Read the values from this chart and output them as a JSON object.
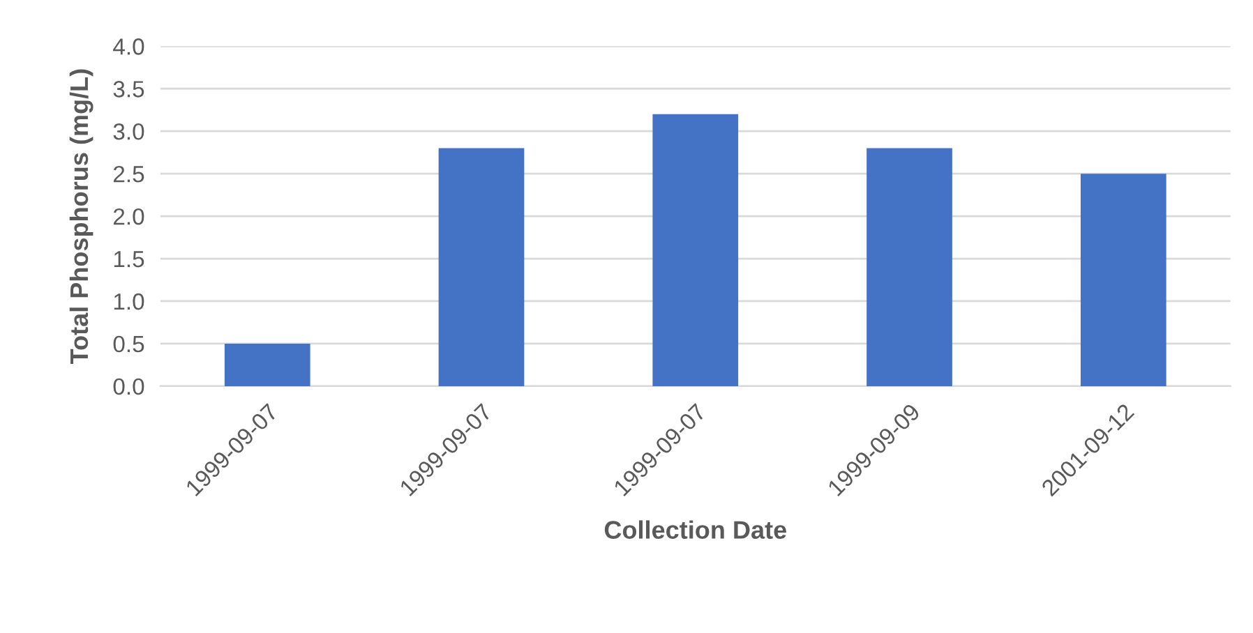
{
  "chart_data": {
    "type": "bar",
    "xlabel": "Collection Date",
    "ylabel": "Total Phosphorus (mg/L)",
    "categories": [
      "1999-09-07",
      "1999-09-07",
      "1999-09-07",
      "1999-09-09",
      "2001-09-12"
    ],
    "values": [
      0.5,
      2.8,
      3.2,
      2.8,
      2.5
    ],
    "color": "#4472c4",
    "ylim": [
      0,
      4
    ],
    "yticks": [
      {
        "value": 0,
        "label": "0.0"
      },
      {
        "value": 0.5,
        "label": "0.5"
      },
      {
        "value": 1,
        "label": "1.0"
      },
      {
        "value": 1.5,
        "label": "1.5"
      },
      {
        "value": 2,
        "label": "2.0"
      },
      {
        "value": 2.5,
        "label": "2.5"
      },
      {
        "value": 3,
        "label": "3.0"
      },
      {
        "value": 3.5,
        "label": "3.5"
      },
      {
        "value": 4,
        "label": "4.0"
      }
    ],
    "grid": "y"
  }
}
